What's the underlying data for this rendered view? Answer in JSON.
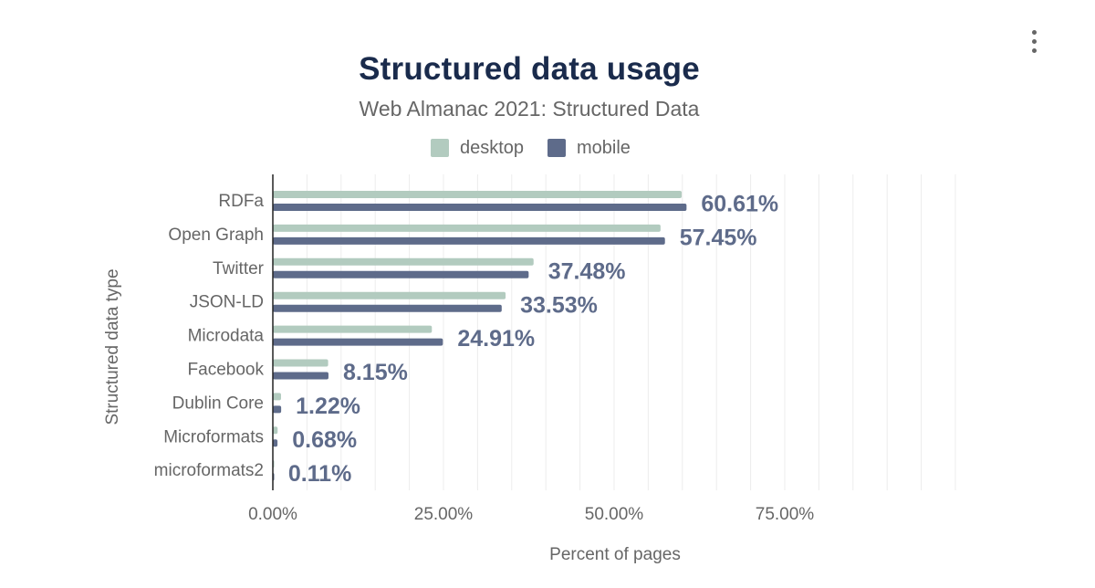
{
  "colors": {
    "desktop": "#b2cbbf",
    "mobile": "#5e6b8a",
    "title": "#1a2b4c",
    "label": "#666666",
    "data_label": "#5e6b8a",
    "grid": "#ececec",
    "axis": "#222222"
  },
  "menu": {
    "icon": "vertical-ellipsis-icon"
  },
  "chart_data": {
    "type": "bar",
    "orientation": "horizontal",
    "title": "Structured data usage",
    "subtitle": "Web Almanac 2021: Structured Data",
    "xlabel": "Percent of pages",
    "ylabel": "Structured data type",
    "xlim": [
      0,
      100
    ],
    "x_ticks": [
      0,
      25,
      50,
      75
    ],
    "x_tick_labels": [
      "0.00%",
      "25.00%",
      "50.00%",
      "75.00%"
    ],
    "grid_step": 5,
    "grid": true,
    "legend": "top",
    "categories": [
      "RDFa",
      "Open Graph",
      "Twitter",
      "JSON-LD",
      "Microdata",
      "Facebook",
      "Dublin Core",
      "Microformats",
      "microformats2"
    ],
    "series": [
      {
        "name": "desktop",
        "values": [
          59.9,
          56.8,
          38.2,
          34.1,
          23.3,
          8.1,
          1.2,
          0.7,
          0.1
        ]
      },
      {
        "name": "mobile",
        "values": [
          60.61,
          57.45,
          37.48,
          33.53,
          24.91,
          8.15,
          1.22,
          0.68,
          0.11
        ]
      }
    ],
    "data_labels": [
      "60.61%",
      "57.45%",
      "37.48%",
      "33.53%",
      "24.91%",
      "8.15%",
      "1.22%",
      "0.68%",
      "0.11%"
    ]
  }
}
